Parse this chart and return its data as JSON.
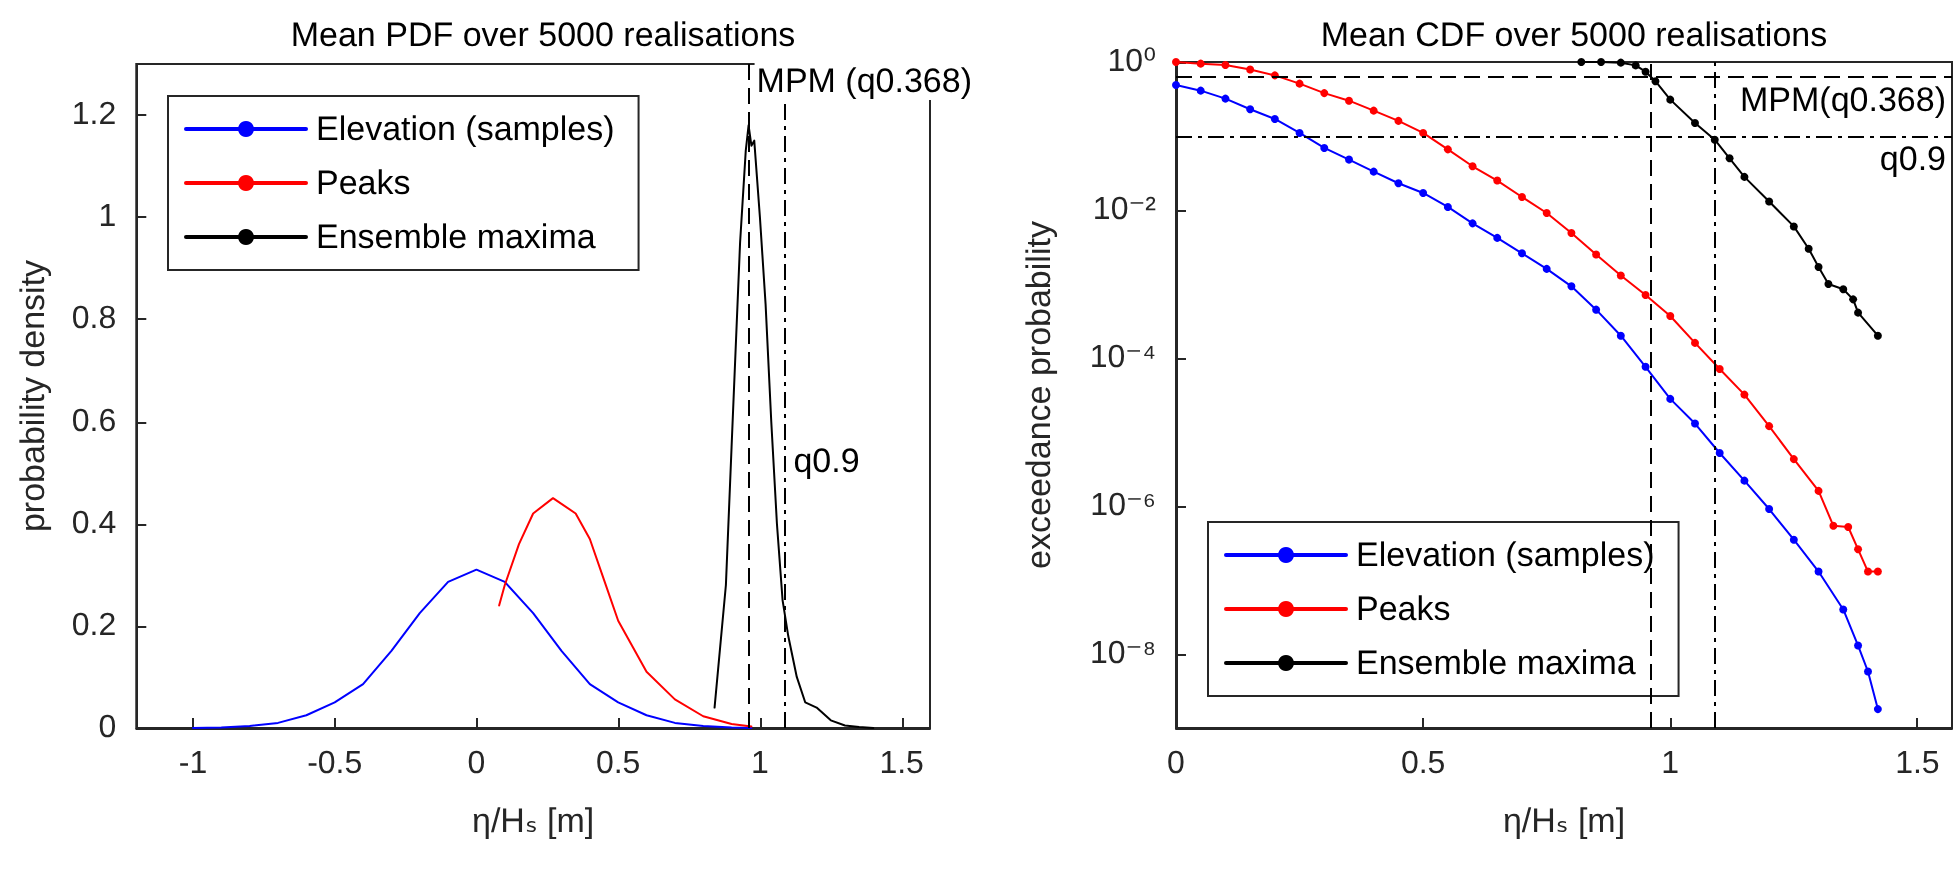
{
  "chart_data": [
    {
      "type": "line",
      "title": "Mean PDF over 5000 realisations",
      "xlabel": "η/Hₛ [m]",
      "ylabel": "probability density",
      "xlim": [
        -1.2,
        1.6
      ],
      "xticks": [
        -1,
        -0.5,
        0,
        0.5,
        1,
        1.5
      ],
      "ylim": [
        0,
        1.3
      ],
      "yticks": [
        0,
        0.2,
        0.4,
        0.6,
        0.8,
        1,
        1.2
      ],
      "grid": false,
      "legend": "top left",
      "marker": "none",
      "line_style": "solid",
      "series": [
        {
          "name": "Elevation (samples)",
          "color": "#0000ff",
          "x": [
            -1,
            -0.9,
            -0.8,
            -0.7,
            -0.6,
            -0.5,
            -0.4,
            -0.3,
            -0.2,
            -0.1,
            0,
            0.1,
            0.2,
            0.3,
            0.4,
            0.5,
            0.6,
            0.7,
            0.8,
            0.9,
            0.97
          ],
          "values": [
            0,
            0.001,
            0.004,
            0.01,
            0.025,
            0.05,
            0.086,
            0.151,
            0.225,
            0.286,
            0.31,
            0.286,
            0.225,
            0.151,
            0.086,
            0.05,
            0.025,
            0.01,
            0.004,
            0.001,
            0
          ]
        },
        {
          "name": "Peaks",
          "color": "#ff0000",
          "x": [
            0.08,
            0.1,
            0.15,
            0.2,
            0.27,
            0.35,
            0.4,
            0.45,
            0.5,
            0.6,
            0.7,
            0.8,
            0.9,
            0.97
          ],
          "values": [
            0.24,
            0.28,
            0.36,
            0.42,
            0.45,
            0.42,
            0.37,
            0.29,
            0.21,
            0.11,
            0.056,
            0.023,
            0.008,
            0.003
          ]
        },
        {
          "name": "Ensemble maxima",
          "color": "#000000",
          "x": [
            0.84,
            0.88,
            0.9,
            0.93,
            0.95,
            0.96,
            0.97,
            0.98,
            1.0,
            1.02,
            1.04,
            1.06,
            1.08,
            1.1,
            1.13,
            1.16,
            1.2,
            1.25,
            1.3,
            1.35,
            1.4
          ],
          "values": [
            0.04,
            0.28,
            0.55,
            0.95,
            1.13,
            1.18,
            1.14,
            1.15,
            1.0,
            0.83,
            0.6,
            0.4,
            0.25,
            0.18,
            0.1,
            0.05,
            0.04,
            0.015,
            0.005,
            0.002,
            0
          ]
        }
      ],
      "ref_lines": [
        {
          "axis": "x",
          "value": 0.96,
          "label": "MPM (q0.368)",
          "line_style": "dashed",
          "color": "#000000"
        },
        {
          "axis": "x",
          "value": 1.09,
          "label": "q0.9",
          "line_style": "dashdot",
          "color": "#000000"
        }
      ]
    },
    {
      "type": "line",
      "title": "Mean CDF over 5000 realisations",
      "xlabel": "η/Hₛ [m]",
      "ylabel": "exceedance probability",
      "log": "y",
      "xlim": [
        0,
        1.57
      ],
      "xticks": [
        0,
        0.5,
        1,
        1.5
      ],
      "ylim": [
        1e-09,
        1
      ],
      "yticks": [
        {
          "value": 1e-08,
          "label": "10⁻⁸"
        },
        {
          "value": 1e-06,
          "label": "10⁻⁶"
        },
        {
          "value": 0.0001,
          "label": "10⁻⁴"
        },
        {
          "value": 0.01,
          "label": "10⁻²"
        },
        {
          "value": 1,
          "label": "10⁰"
        }
      ],
      "grid": false,
      "legend": "bottom left",
      "marker": "circle",
      "line_style": "solid",
      "series": [
        {
          "name": "Elevation (samples)",
          "color": "#0000ff",
          "x": [
            0,
            0.05,
            0.1,
            0.15,
            0.2,
            0.25,
            0.3,
            0.35,
            0.4,
            0.45,
            0.5,
            0.55,
            0.6,
            0.65,
            0.7,
            0.75,
            0.8,
            0.85,
            0.9,
            0.95,
            1.0,
            1.05,
            1.1,
            1.15,
            1.2,
            1.25,
            1.3,
            1.35,
            1.38,
            1.4,
            1.42
          ],
          "values": [
            0.49,
            0.41,
            0.32,
            0.23,
            0.17,
            0.11,
            0.069,
            0.048,
            0.033,
            0.023,
            0.017,
            0.011,
            0.0066,
            0.0042,
            0.0026,
            0.0016,
            0.00093,
            0.00045,
            0.0002,
            7.6e-05,
            2.8e-05,
            1.3e-05,
            5.2e-06,
            2.2e-06,
            9.1e-07,
            3.5e-07,
            1.3e-07,
            4e-08,
            1.3e-08,
            5.8e-09,
            1.8e-09
          ]
        },
        {
          "name": "Peaks",
          "color": "#ff0000",
          "x": [
            0,
            0.05,
            0.1,
            0.15,
            0.2,
            0.25,
            0.3,
            0.35,
            0.4,
            0.45,
            0.5,
            0.55,
            0.6,
            0.65,
            0.7,
            0.75,
            0.8,
            0.85,
            0.9,
            0.95,
            1.0,
            1.05,
            1.1,
            1.15,
            1.2,
            1.25,
            1.3,
            1.33,
            1.36,
            1.38,
            1.4,
            1.42
          ],
          "values": [
            1,
            0.95,
            0.91,
            0.79,
            0.66,
            0.51,
            0.38,
            0.3,
            0.22,
            0.16,
            0.11,
            0.066,
            0.039,
            0.025,
            0.015,
            0.0091,
            0.0049,
            0.0025,
            0.0013,
            0.00071,
            0.00037,
            0.00016,
            7.1e-05,
            3.2e-05,
            1.2e-05,
            4.3e-06,
            1.6e-06,
            5.4e-07,
            5.2e-07,
            2.6e-07,
            1.3e-07,
            1.3e-07
          ]
        },
        {
          "name": "Ensemble maxima",
          "color": "#000000",
          "x": [
            0.82,
            0.86,
            0.9,
            0.93,
            0.95,
            0.97,
            1.0,
            1.05,
            1.09,
            1.12,
            1.15,
            1.2,
            1.25,
            1.28,
            1.3,
            1.32,
            1.35,
            1.37,
            1.38,
            1.42
          ],
          "values": [
            1,
            1,
            0.98,
            0.9,
            0.74,
            0.55,
            0.31,
            0.15,
            0.089,
            0.05,
            0.028,
            0.013,
            0.006,
            0.003,
            0.0017,
            0.001,
            0.00085,
            0.00062,
            0.00041,
            0.0002
          ]
        }
      ],
      "ref_lines": [
        {
          "axis": "x",
          "value": 0.96,
          "line_style": "dashed",
          "color": "#000000"
        },
        {
          "axis": "x",
          "value": 1.09,
          "line_style": "dashdot",
          "color": "#000000"
        },
        {
          "axis": "y",
          "value": 0.632,
          "label": "MPM(q0.368)",
          "line_style": "dashed",
          "color": "#000000"
        },
        {
          "axis": "y",
          "value": 0.1,
          "label": "q0.9",
          "line_style": "dashdot",
          "color": "#000000"
        }
      ]
    }
  ]
}
